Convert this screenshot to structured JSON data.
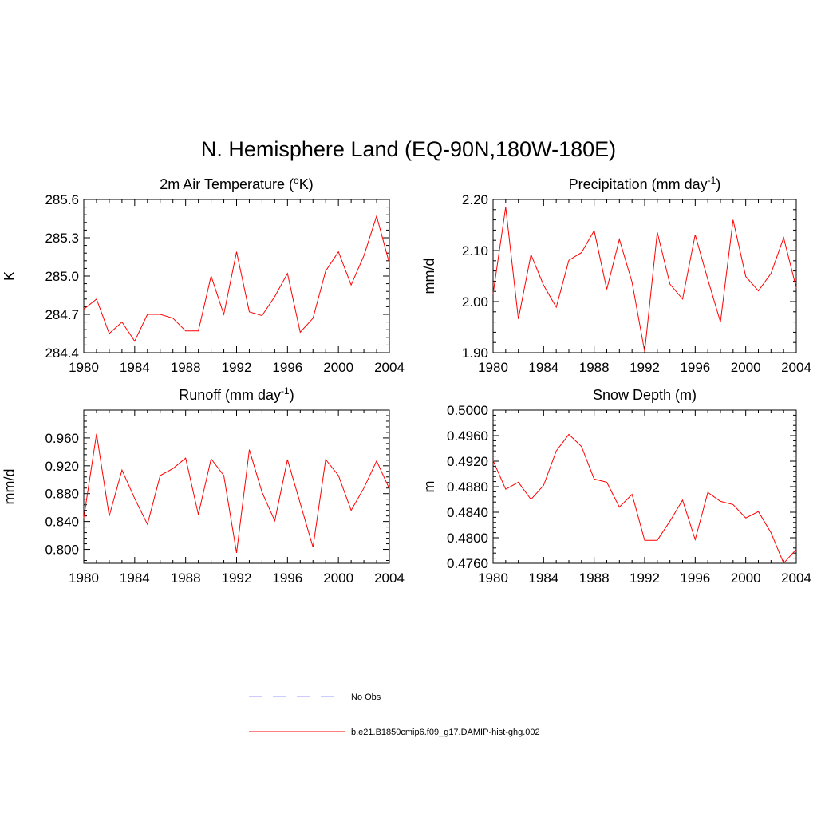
{
  "figure": {
    "title": "N. Hemisphere Land (EQ-90N,180W-180E)"
  },
  "chart_data": [
    {
      "type": "line",
      "title": "2m Air Temperature (",
      "title_sup": "o",
      "title_after": "K)",
      "ylabel": "K",
      "xlim": [
        1980,
        2004
      ],
      "ylim": [
        284.4,
        285.6
      ],
      "x_ticks": [
        1980,
        1984,
        1988,
        1992,
        1996,
        2000,
        2004
      ],
      "y_ticks": [
        "284.4",
        "284.7",
        "285.0",
        "285.3",
        "285.6"
      ],
      "x": [
        1980,
        1981,
        1982,
        1983,
        1984,
        1985,
        1986,
        1987,
        1988,
        1989,
        1990,
        1991,
        1992,
        1993,
        1994,
        1995,
        1996,
        1997,
        1998,
        1999,
        2000,
        2001,
        2002,
        2003,
        2004
      ],
      "series": [
        {
          "name": "b.e21.B1850cmip6.f09_g17.DAMIP-hist-ghg.002",
          "color": "#ff0000",
          "values": [
            284.74,
            284.82,
            284.55,
            284.64,
            284.49,
            284.7,
            284.7,
            284.67,
            284.57,
            284.57,
            285.0,
            284.7,
            285.19,
            284.72,
            284.69,
            284.84,
            285.02,
            284.56,
            284.67,
            285.04,
            285.19,
            284.93,
            285.16,
            285.47,
            285.1
          ]
        }
      ]
    },
    {
      "type": "line",
      "title": "Precipitation (mm day",
      "title_sup": "-1",
      "title_after": ")",
      "ylabel": "mm/d",
      "xlim": [
        1980,
        2004
      ],
      "ylim": [
        1.9,
        2.2
      ],
      "x_ticks": [
        1980,
        1984,
        1988,
        1992,
        1996,
        2000,
        2004
      ],
      "y_ticks": [
        "1.90",
        "2.00",
        "2.10",
        "2.20"
      ],
      "x": [
        1980,
        1981,
        1982,
        1983,
        1984,
        1985,
        1986,
        1987,
        1988,
        1989,
        1990,
        1991,
        1992,
        1993,
        1994,
        1995,
        1996,
        1997,
        1998,
        1999,
        2000,
        2001,
        2002,
        2003,
        2004
      ],
      "series": [
        {
          "name": "b.e21.B1850cmip6.f09_g17.DAMIP-hist-ghg.002",
          "color": "#ff0000",
          "values": [
            2.015,
            2.185,
            1.966,
            2.092,
            2.032,
            1.989,
            2.081,
            2.096,
            2.139,
            2.024,
            2.122,
            2.038,
            1.902,
            2.136,
            2.034,
            2.005,
            2.131,
            2.043,
            1.96,
            2.16,
            2.049,
            2.021,
            2.055,
            2.125,
            2.027
          ]
        }
      ]
    },
    {
      "type": "line",
      "title": "Runoff (mm day",
      "title_sup": "-1",
      "title_after": ")",
      "ylabel": "mm/d",
      "xlim": [
        1980,
        2004
      ],
      "ylim": [
        0.78,
        1.0
      ],
      "x_ticks": [
        1980,
        1984,
        1988,
        1992,
        1996,
        2000,
        2004
      ],
      "y_ticks": [
        "0.800",
        "0.840",
        "0.880",
        "0.920",
        "0.960"
      ],
      "y_tick_values": [
        0.8,
        0.84,
        0.88,
        0.92,
        0.96
      ],
      "x": [
        1980,
        1981,
        1982,
        1983,
        1984,
        1985,
        1986,
        1987,
        1988,
        1989,
        1990,
        1991,
        1992,
        1993,
        1994,
        1995,
        1996,
        1997,
        1998,
        1999,
        2000,
        2001,
        2002,
        2003,
        2004
      ],
      "series": [
        {
          "name": "b.e21.B1850cmip6.f09_g17.DAMIP-hist-ghg.002",
          "color": "#ff0000",
          "values": [
            0.845,
            0.966,
            0.848,
            0.914,
            0.873,
            0.836,
            0.906,
            0.916,
            0.931,
            0.85,
            0.93,
            0.906,
            0.795,
            0.943,
            0.882,
            0.841,
            0.929,
            0.866,
            0.803,
            0.929,
            0.906,
            0.856,
            0.888,
            0.927,
            0.887
          ]
        }
      ]
    },
    {
      "type": "line",
      "title": "Snow Depth (m)",
      "title_sup": "",
      "title_after": "",
      "ylabel": "m",
      "xlim": [
        1980,
        2004
      ],
      "ylim": [
        0.476,
        0.5
      ],
      "x_ticks": [
        1980,
        1984,
        1988,
        1992,
        1996,
        2000,
        2004
      ],
      "y_ticks": [
        "0.4760",
        "0.4800",
        "0.4840",
        "0.4880",
        "0.4920",
        "0.4960",
        "0.5000"
      ],
      "x": [
        1980,
        1981,
        1982,
        1983,
        1984,
        1985,
        1986,
        1987,
        1988,
        1989,
        1990,
        1991,
        1992,
        1993,
        1994,
        1995,
        1996,
        1997,
        1998,
        1999,
        2000,
        2001,
        2002,
        2003,
        2004
      ],
      "series": [
        {
          "name": "b.e21.B1850cmip6.f09_g17.DAMIP-hist-ghg.002",
          "color": "#ff0000",
          "values": [
            0.4921,
            0.4876,
            0.4887,
            0.486,
            0.4882,
            0.4936,
            0.4962,
            0.4943,
            0.4892,
            0.4887,
            0.4848,
            0.4868,
            0.4796,
            0.4796,
            0.4826,
            0.4859,
            0.4797,
            0.4871,
            0.4857,
            0.4852,
            0.4831,
            0.4841,
            0.4808,
            0.476,
            0.4782
          ]
        }
      ]
    }
  ],
  "legend": [
    {
      "label": "No Obs",
      "color": "#9999ff",
      "dash": true
    },
    {
      "label": "b.e21.B1850cmip6.f09_g17.DAMIP-hist-ghg.002",
      "color": "#ff0000",
      "dash": false
    }
  ]
}
